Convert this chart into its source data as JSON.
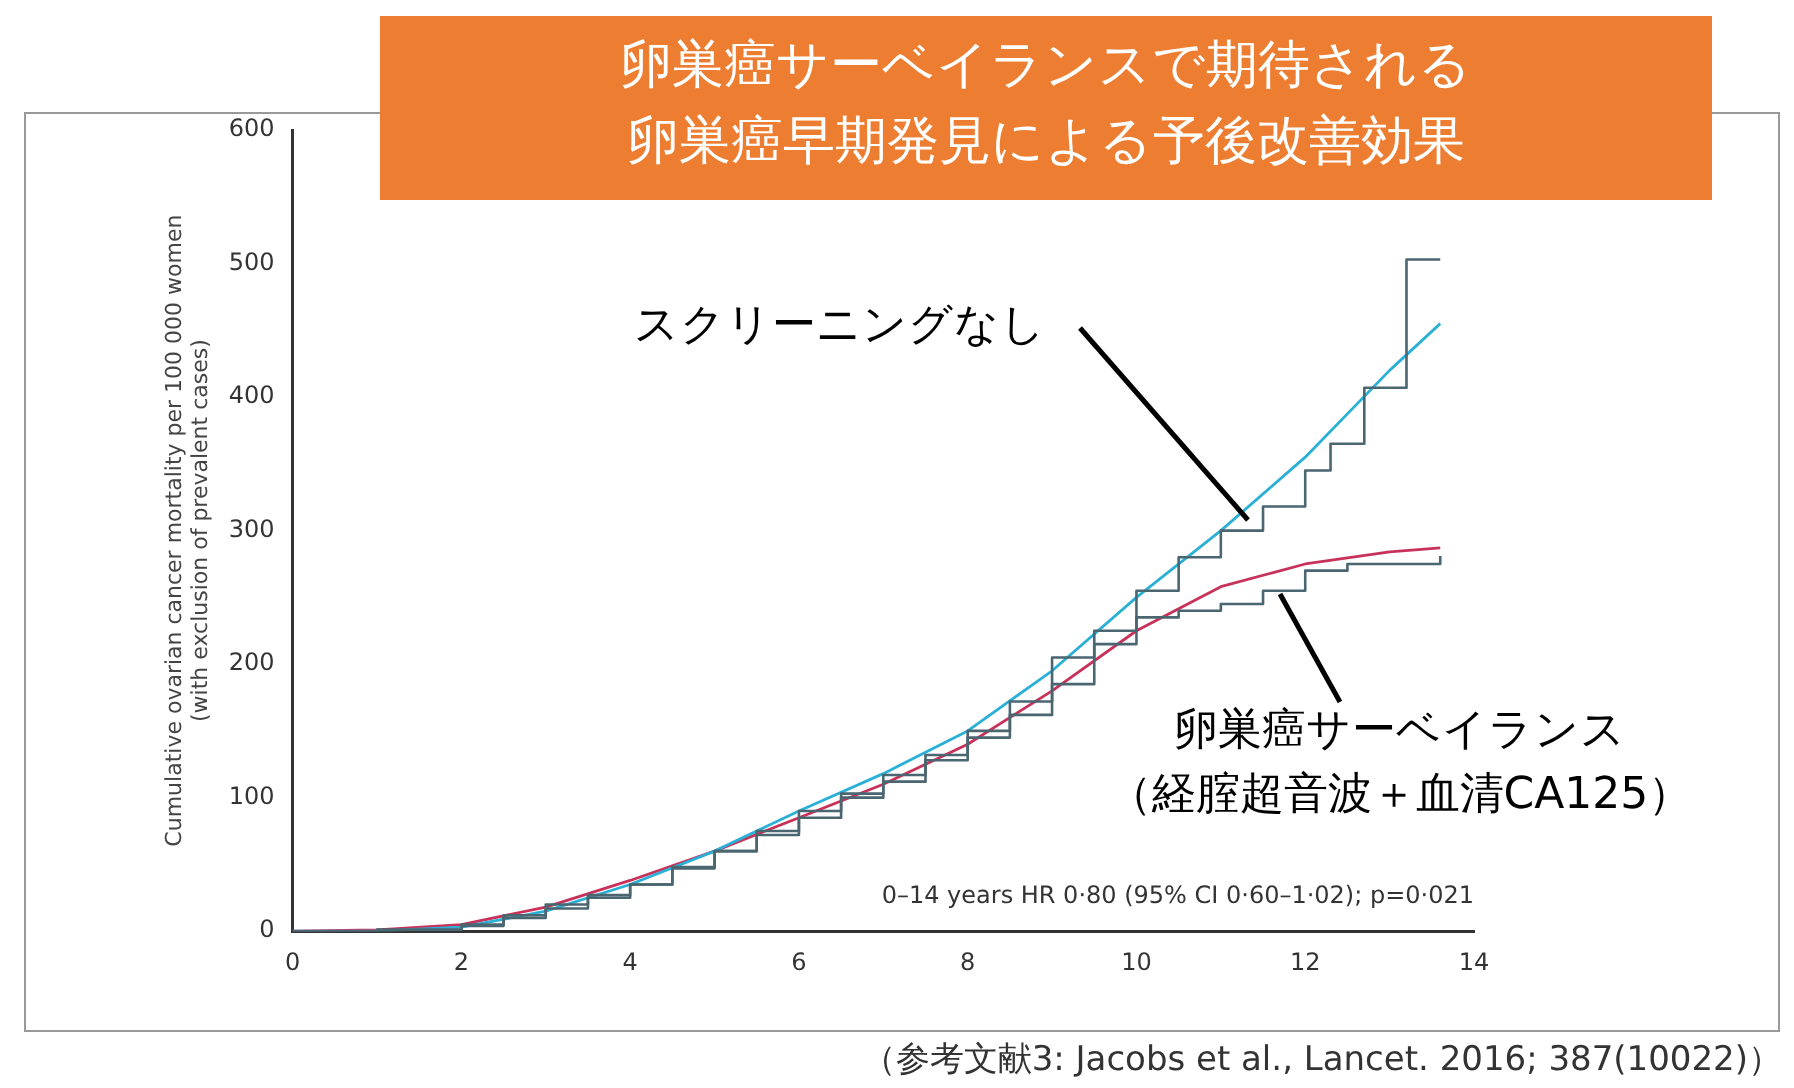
{
  "chart_data": {
    "type": "line",
    "title": "卵巣癌サーベイランスで期待される卵巣癌早期発見による予後改善効果",
    "ylabel": "Cumulative ovarian cancer mortality per 100 000 women\n(with exclusion of prevalent cases)",
    "xlim": [
      0,
      14
    ],
    "xticks": [
      0,
      2,
      4,
      6,
      8,
      10,
      12,
      14
    ],
    "ylim": [
      0,
      600
    ],
    "yticks": [
      0,
      100,
      200,
      300,
      400,
      500,
      600
    ],
    "grid": false,
    "legend": false,
    "marker": "none",
    "line_style": "solid",
    "series": [
      {
        "type": "step",
        "color": "#4a6670",
        "x": [
          0,
          1,
          2,
          2.5,
          3,
          3.5,
          4,
          4.5,
          5,
          5.5,
          6,
          6.5,
          7,
          7.5,
          8,
          8.5,
          9,
          9.5,
          10,
          10.5,
          11,
          11.5,
          12,
          12.3,
          12.7,
          13.2,
          13.6
        ],
        "values": [
          0,
          1,
          4,
          10,
          17,
          25,
          35,
          47,
          60,
          75,
          90,
          103,
          117,
          132,
          150,
          172,
          205,
          225,
          255,
          280,
          300,
          318,
          345,
          365,
          407,
          503,
          503
        ]
      },
      {
        "type": "step",
        "color": "#4a6670",
        "x": [
          0,
          1,
          2,
          2.5,
          3,
          3.5,
          4,
          4.5,
          5,
          5.5,
          6,
          6.5,
          7,
          7.5,
          8,
          8.5,
          9,
          9.5,
          10,
          10.5,
          11,
          11.5,
          12,
          12.5,
          13.6
        ],
        "values": [
          0,
          1,
          5,
          12,
          20,
          27,
          35,
          48,
          60,
          72,
          85,
          100,
          112,
          128,
          145,
          162,
          185,
          215,
          235,
          240,
          245,
          255,
          270,
          275,
          281
        ]
      },
      {
        "color": "#2ab0d6",
        "x": [
          0,
          1,
          2,
          3,
          4,
          5,
          6,
          7,
          8,
          9,
          10,
          11,
          12,
          13,
          13.6
        ],
        "values": [
          0,
          0,
          3,
          15,
          35,
          60,
          90,
          118,
          150,
          195,
          250,
          300,
          355,
          420,
          455
        ]
      },
      {
        "color": "#c8325a",
        "x": [
          0,
          1,
          2,
          3,
          4,
          5,
          6,
          7,
          8,
          9,
          10,
          11,
          12,
          13,
          13.6
        ],
        "values": [
          0,
          1,
          5,
          18,
          38,
          60,
          85,
          110,
          140,
          180,
          225,
          258,
          275,
          284,
          287
        ]
      }
    ],
    "annotations": [
      {
        "text": "スクリーニングなし",
        "x": 11.3,
        "y": 305
      },
      {
        "text": "卵巣癌サーベイランス（経腟超音波＋血清CA125）",
        "x": 11.7,
        "y": 255
      },
      "0–14 years HR 0·80 (95% CI 0·60–1·02); p=0·021",
      "（参考文献3: Jacobs et al., Lancet. 2016; 387(10022)）"
    ]
  }
}
